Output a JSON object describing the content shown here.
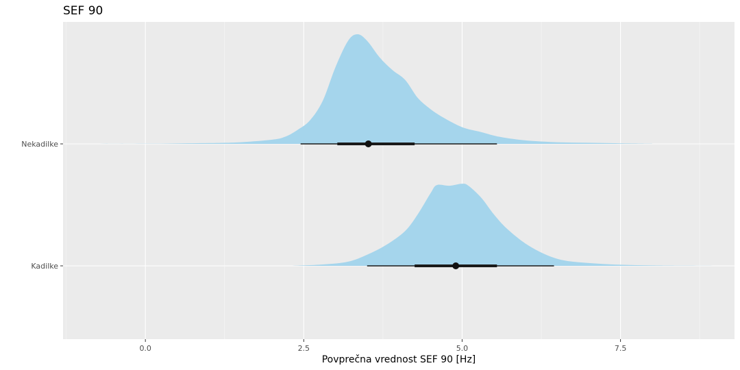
{
  "chart_data": {
    "type": "density",
    "title": "SEF 90",
    "xlabel": "Povprečna vrednost SEF 90 [Hz]",
    "ylabel": "",
    "xlim": [
      -1.3,
      9.3
    ],
    "x_ticks": [
      0.0,
      2.5,
      5.0,
      7.5
    ],
    "x_tick_labels": [
      "0.0",
      "2.5",
      "5.0",
      "7.5"
    ],
    "categories": [
      "Nekadilke",
      "Kadilke"
    ],
    "grid": true,
    "legend": "none",
    "fill_color": "#a5d5ec",
    "panel_color": "#ebebeb",
    "interval_color": "#1a1a1a",
    "series": [
      {
        "category": "Nekadilke",
        "point": 3.52,
        "interval_66": [
          3.03,
          4.25
        ],
        "interval_95": [
          2.45,
          5.55
        ],
        "density": {
          "x": [
            -1.0,
            0.0,
            1.0,
            1.5,
            2.0,
            2.2,
            2.4,
            2.6,
            2.8,
            3.0,
            3.2,
            3.35,
            3.5,
            3.7,
            3.9,
            4.1,
            4.3,
            4.5,
            4.7,
            5.0,
            5.3,
            5.6,
            6.0,
            6.5,
            7.0,
            7.5,
            8.0
          ],
          "y": [
            0.0,
            0.001,
            0.006,
            0.012,
            0.03,
            0.05,
            0.1,
            0.17,
            0.31,
            0.55,
            0.74,
            0.787,
            0.74,
            0.62,
            0.53,
            0.46,
            0.33,
            0.25,
            0.19,
            0.12,
            0.085,
            0.05,
            0.025,
            0.012,
            0.008,
            0.004,
            0.001
          ]
        }
      },
      {
        "category": "Kadilke",
        "point": 4.9,
        "interval_66": [
          4.25,
          5.55
        ],
        "interval_95": [
          3.5,
          6.45
        ],
        "density": {
          "x": [
            2.3,
            2.8,
            3.2,
            3.5,
            3.8,
            4.1,
            4.3,
            4.5,
            4.6,
            4.8,
            5.0,
            5.1,
            5.3,
            5.5,
            5.7,
            6.0,
            6.3,
            6.6,
            7.0,
            7.5,
            8.0,
            8.5,
            9.3
          ],
          "y": [
            0.0,
            0.01,
            0.03,
            0.08,
            0.15,
            0.25,
            0.37,
            0.52,
            0.58,
            0.575,
            0.59,
            0.575,
            0.49,
            0.37,
            0.27,
            0.16,
            0.085,
            0.04,
            0.02,
            0.008,
            0.003,
            0.001,
            0.0
          ]
        }
      }
    ]
  }
}
